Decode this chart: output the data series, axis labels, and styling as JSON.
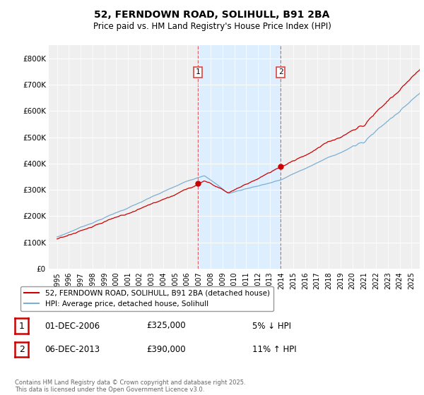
{
  "title_line1": "52, FERNDOWN ROAD, SOLIHULL, B91 2BA",
  "title_line2": "Price paid vs. HM Land Registry's House Price Index (HPI)",
  "ytick_labels": [
    "£0",
    "£100K",
    "£200K",
    "£300K",
    "£400K",
    "£500K",
    "£600K",
    "£700K",
    "£800K"
  ],
  "yticks": [
    0,
    100000,
    200000,
    300000,
    400000,
    500000,
    600000,
    700000,
    800000
  ],
  "ylim": [
    0,
    850000
  ],
  "hpi_color": "#7bafd4",
  "price_color": "#cc0000",
  "sale1_year": 2006.92,
  "sale1_price": 325000,
  "sale2_year": 2013.92,
  "sale2_price": 390000,
  "annotation1_date": "01-DEC-2006",
  "annotation1_price": "£325,000",
  "annotation1_pct": "5% ↓ HPI",
  "annotation2_date": "06-DEC-2013",
  "annotation2_price": "£390,000",
  "annotation2_pct": "11% ↑ HPI",
  "legend_label1": "52, FERNDOWN ROAD, SOLIHULL, B91 2BA (detached house)",
  "legend_label2": "HPI: Average price, detached house, Solihull",
  "footnote": "Contains HM Land Registry data © Crown copyright and database right 2025.\nThis data is licensed under the Open Government Licence v3.0.",
  "highlight_color": "#ddeeff",
  "vline_color": "#dd4444",
  "bg_color": "#efefef",
  "grid_color": "white",
  "xtick_years": [
    1995,
    1996,
    1997,
    1998,
    1999,
    2000,
    2001,
    2002,
    2003,
    2004,
    2005,
    2006,
    2007,
    2008,
    2009,
    2010,
    2011,
    2012,
    2013,
    2014,
    2015,
    2016,
    2017,
    2018,
    2019,
    2020,
    2021,
    2022,
    2023,
    2024,
    2025
  ],
  "xlim_left": 1994.3,
  "xlim_right": 2025.7
}
